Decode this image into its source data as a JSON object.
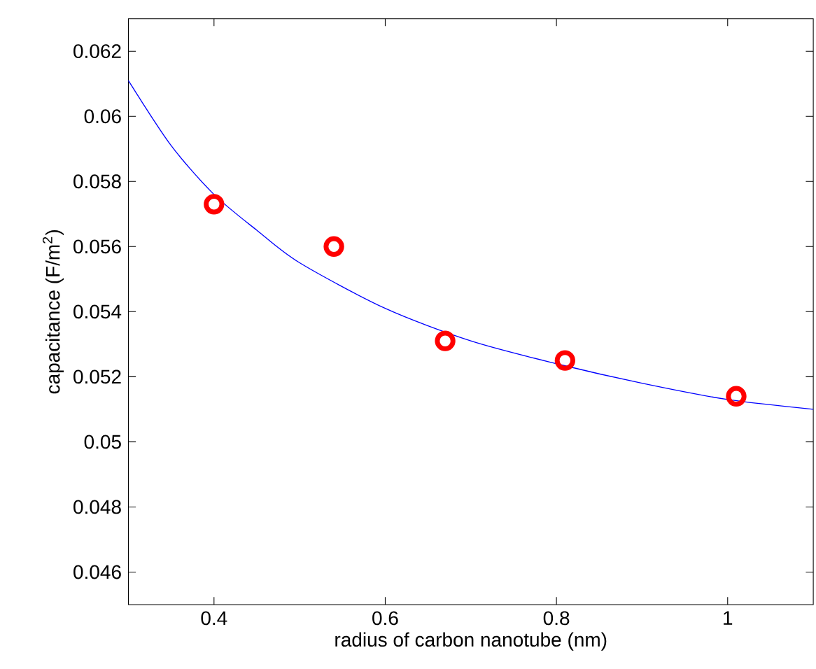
{
  "chart_data": {
    "type": "scatter",
    "xlabel": "radius of carbon nanotube (nm)",
    "ylabel": "capacitance (F/m$^{2}$)",
    "xlim": [
      0.3,
      1.1
    ],
    "xticks": [
      0.4,
      0.6,
      0.8,
      1
    ],
    "ylim": [
      0.045,
      0.063
    ],
    "yticks": [
      0.046,
      0.048,
      0.05,
      0.052,
      0.054,
      0.056,
      0.058,
      0.06,
      0.062
    ],
    "grid": false,
    "series": [
      {
        "marker": "circle",
        "color": "#ff0000",
        "x": [
          0.4,
          0.54,
          0.67,
          0.81,
          1.01
        ],
        "values": [
          0.0573,
          0.056,
          0.0531,
          0.0525,
          0.0514
        ]
      },
      {
        "type": "line",
        "marker": "none",
        "line_style": "solid",
        "color": "#0000ff",
        "x": [
          0.3,
          0.35,
          0.4,
          0.45,
          0.5,
          0.6,
          0.7,
          0.8,
          0.9,
          1.0,
          1.1
        ],
        "values": [
          0.0611,
          0.0591,
          0.0576,
          0.0565,
          0.0555,
          0.0541,
          0.0531,
          0.0524,
          0.0518,
          0.0513,
          0.051
        ]
      }
    ]
  }
}
